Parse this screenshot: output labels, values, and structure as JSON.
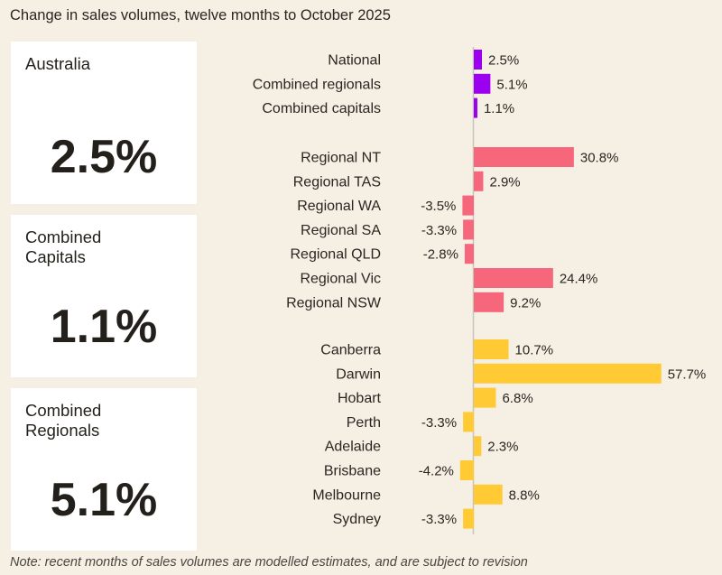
{
  "chart_data": {
    "type": "bar",
    "orientation": "horizontal",
    "title": "Change in sales volumes, twelve months to October 2025",
    "unit": "%",
    "groups": [
      {
        "color": "#9b00f0",
        "categories": [
          "National",
          "Combined regionals",
          "Combined capitals"
        ],
        "values": [
          2.5,
          5.1,
          1.1
        ],
        "labels": [
          "2.5%",
          "5.1%",
          "1.1%"
        ]
      },
      {
        "color": "#f7677b",
        "categories": [
          "Regional NT",
          "Regional TAS",
          "Regional WA",
          "Regional SA",
          "Regional QLD",
          "Regional Vic",
          "Regional NSW"
        ],
        "values": [
          30.8,
          2.9,
          -3.5,
          -3.3,
          -2.8,
          24.4,
          9.2
        ],
        "labels": [
          "30.8%",
          "2.9%",
          "-3.5%",
          "-3.3%",
          "-2.8%",
          "24.4%",
          "9.2%"
        ]
      },
      {
        "color": "#ffca33",
        "categories": [
          "Canberra",
          "Darwin",
          "Hobart",
          "Perth",
          "Adelaide",
          "Brisbane",
          "Melbourne",
          "Sydney"
        ],
        "values": [
          10.7,
          57.7,
          6.8,
          -3.3,
          2.3,
          -4.2,
          8.8,
          -3.3
        ],
        "labels": [
          "10.7%",
          "57.7%",
          "6.8%",
          "-3.3%",
          "2.3%",
          "-4.2%",
          "8.8%",
          "-3.3%"
        ]
      }
    ],
    "grid": false,
    "legend": "none"
  },
  "cards": [
    {
      "label": "Australia",
      "value": "2.5%"
    },
    {
      "label": "Combined Capitals",
      "value": "1.1%"
    },
    {
      "label": "Combined Regionals",
      "value": "5.1%"
    }
  ],
  "note": "Note: recent months of sales volumes are modelled estimates, and are subject to revision"
}
